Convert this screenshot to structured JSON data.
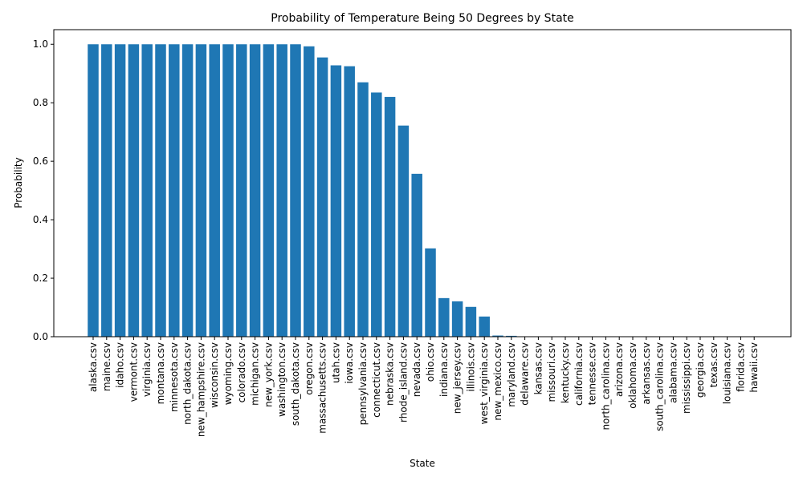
{
  "chart_data": {
    "type": "bar",
    "title": "Probability of Temperature Being 50 Degrees by State",
    "xlabel": "State",
    "ylabel": "Probability",
    "ylim": [
      0,
      1.05
    ],
    "yticks": [
      "0.0",
      "0.2",
      "0.4",
      "0.6",
      "0.8",
      "1.0"
    ],
    "grid": false,
    "bar_color": "#1f77b4",
    "categories": [
      "alaska.csv",
      "maine.csv",
      "idaho.csv",
      "vermont.csv",
      "virginia.csv",
      "montana.csv",
      "minnesota.csv",
      "north_dakota.csv",
      "new_hampshire.csv",
      "wisconsin.csv",
      "wyoming.csv",
      "colorado.csv",
      "michigan.csv",
      "new_york.csv",
      "washington.csv",
      "south_dakota.csv",
      "oregon.csv",
      "massachusetts.csv",
      "utah.csv",
      "iowa.csv",
      "pennsylvania.csv",
      "connecticut.csv",
      "nebraska.csv",
      "rhode_island.csv",
      "nevada.csv",
      "ohio.csv",
      "indiana.csv",
      "new_jersey.csv",
      "illinois.csv",
      "west_virginia.csv",
      "new_mexico.csv",
      "maryland.csv",
      "delaware.csv",
      "kansas.csv",
      "missouri.csv",
      "kentucky.csv",
      "california.csv",
      "tennesse.csv",
      "north_carolina.csv",
      "arizona.csv",
      "oklahoma.csv",
      "arkansas.csv",
      "south_carolina.csv",
      "alabama.csv",
      "mississippi.csv",
      "georgia.csv",
      "texas.csv",
      "louisiana.csv",
      "florida.csv",
      "hawaii.csv"
    ],
    "values": [
      1.0,
      1.0,
      1.0,
      1.0,
      1.0,
      1.0,
      1.0,
      1.0,
      1.0,
      1.0,
      1.0,
      1.0,
      1.0,
      1.0,
      1.0,
      1.0,
      0.993,
      0.955,
      0.928,
      0.925,
      0.87,
      0.835,
      0.82,
      0.722,
      0.557,
      0.302,
      0.132,
      0.121,
      0.102,
      0.069,
      0.004,
      0.003,
      0.0005,
      0.0,
      0.0,
      0.0,
      0.0,
      0.0,
      0.0,
      0.0,
      0.0,
      0.0,
      0.0,
      0.0,
      0.0,
      0.0,
      0.0,
      0.0,
      0.0,
      0.0
    ]
  }
}
